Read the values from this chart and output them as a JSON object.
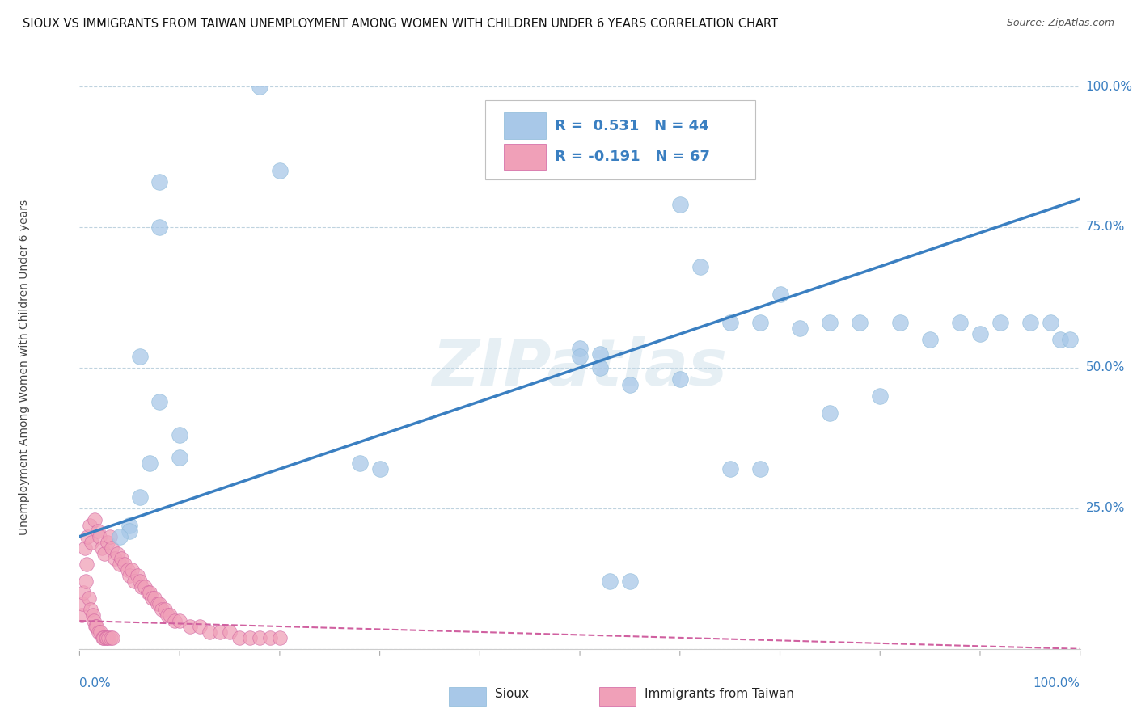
{
  "title": "SIOUX VS IMMIGRANTS FROM TAIWAN UNEMPLOYMENT AMONG WOMEN WITH CHILDREN UNDER 6 YEARS CORRELATION CHART",
  "source": "Source: ZipAtlas.com",
  "ylabel": "Unemployment Among Women with Children Under 6 years",
  "watermark": "ZIPatlas",
  "sioux_R": "0.531",
  "sioux_N": "44",
  "taiwan_R": "-0.191",
  "taiwan_N": "67",
  "sioux_color": "#a8c8e8",
  "taiwan_color": "#f0a0b8",
  "sioux_line_color": "#3a7fc1",
  "taiwan_line_color": "#d060a0",
  "background_color": "#ffffff",
  "grid_color": "#b0c8d8",
  "sioux_points": [
    [
      0.18,
      1.0
    ],
    [
      0.2,
      0.85
    ],
    [
      0.08,
      0.83
    ],
    [
      0.08,
      0.75
    ],
    [
      0.06,
      0.52
    ],
    [
      0.08,
      0.44
    ],
    [
      0.1,
      0.38
    ],
    [
      0.1,
      0.34
    ],
    [
      0.07,
      0.33
    ],
    [
      0.06,
      0.27
    ],
    [
      0.05,
      0.22
    ],
    [
      0.05,
      0.21
    ],
    [
      0.04,
      0.2
    ],
    [
      0.28,
      0.33
    ],
    [
      0.3,
      0.32
    ],
    [
      0.5,
      0.535
    ],
    [
      0.52,
      0.525
    ],
    [
      0.52,
      0.5
    ],
    [
      0.55,
      0.47
    ],
    [
      0.53,
      0.12
    ],
    [
      0.55,
      0.12
    ],
    [
      0.6,
      0.79
    ],
    [
      0.62,
      0.68
    ],
    [
      0.65,
      0.58
    ],
    [
      0.68,
      0.58
    ],
    [
      0.7,
      0.63
    ],
    [
      0.72,
      0.57
    ],
    [
      0.75,
      0.58
    ],
    [
      0.78,
      0.58
    ],
    [
      0.82,
      0.58
    ],
    [
      0.85,
      0.55
    ],
    [
      0.88,
      0.58
    ],
    [
      0.9,
      0.56
    ],
    [
      0.92,
      0.58
    ],
    [
      0.95,
      0.58
    ],
    [
      0.97,
      0.58
    ],
    [
      0.98,
      0.55
    ],
    [
      0.99,
      0.55
    ],
    [
      0.5,
      0.52
    ],
    [
      0.75,
      0.42
    ],
    [
      0.6,
      0.48
    ],
    [
      0.65,
      0.32
    ],
    [
      0.68,
      0.32
    ],
    [
      0.8,
      0.45
    ]
  ],
  "taiwan_points": [
    [
      0.005,
      0.18
    ],
    [
      0.008,
      0.2
    ],
    [
      0.01,
      0.22
    ],
    [
      0.012,
      0.19
    ],
    [
      0.015,
      0.23
    ],
    [
      0.018,
      0.21
    ],
    [
      0.02,
      0.2
    ],
    [
      0.022,
      0.18
    ],
    [
      0.025,
      0.17
    ],
    [
      0.028,
      0.19
    ],
    [
      0.03,
      0.2
    ],
    [
      0.032,
      0.18
    ],
    [
      0.035,
      0.16
    ],
    [
      0.038,
      0.17
    ],
    [
      0.04,
      0.15
    ],
    [
      0.042,
      0.16
    ],
    [
      0.045,
      0.15
    ],
    [
      0.048,
      0.14
    ],
    [
      0.05,
      0.13
    ],
    [
      0.052,
      0.14
    ],
    [
      0.055,
      0.12
    ],
    [
      0.058,
      0.13
    ],
    [
      0.06,
      0.12
    ],
    [
      0.062,
      0.11
    ],
    [
      0.065,
      0.11
    ],
    [
      0.068,
      0.1
    ],
    [
      0.07,
      0.1
    ],
    [
      0.072,
      0.09
    ],
    [
      0.075,
      0.09
    ],
    [
      0.078,
      0.08
    ],
    [
      0.08,
      0.08
    ],
    [
      0.082,
      0.07
    ],
    [
      0.085,
      0.07
    ],
    [
      0.088,
      0.06
    ],
    [
      0.09,
      0.06
    ],
    [
      0.095,
      0.05
    ],
    [
      0.1,
      0.05
    ],
    [
      0.11,
      0.04
    ],
    [
      0.12,
      0.04
    ],
    [
      0.13,
      0.03
    ],
    [
      0.14,
      0.03
    ],
    [
      0.15,
      0.03
    ],
    [
      0.16,
      0.02
    ],
    [
      0.17,
      0.02
    ],
    [
      0.18,
      0.02
    ],
    [
      0.19,
      0.02
    ],
    [
      0.2,
      0.02
    ],
    [
      0.002,
      0.06
    ],
    [
      0.003,
      0.08
    ],
    [
      0.004,
      0.1
    ],
    [
      0.006,
      0.12
    ],
    [
      0.007,
      0.15
    ],
    [
      0.009,
      0.09
    ],
    [
      0.011,
      0.07
    ],
    [
      0.013,
      0.06
    ],
    [
      0.014,
      0.05
    ],
    [
      0.016,
      0.04
    ],
    [
      0.017,
      0.04
    ],
    [
      0.019,
      0.03
    ],
    [
      0.021,
      0.03
    ],
    [
      0.023,
      0.02
    ],
    [
      0.024,
      0.02
    ],
    [
      0.026,
      0.02
    ],
    [
      0.027,
      0.02
    ],
    [
      0.029,
      0.02
    ],
    [
      0.031,
      0.02
    ],
    [
      0.033,
      0.02
    ]
  ],
  "xlim": [
    0,
    1.0
  ],
  "ylim": [
    0,
    1.0
  ],
  "ytick_vals": [
    0.0,
    0.25,
    0.5,
    0.75,
    1.0
  ],
  "ytick_labels": [
    "",
    "25.0%",
    "50.0%",
    "75.0%",
    "100.0%"
  ],
  "sioux_line_intercept": 0.2,
  "sioux_line_slope": 0.6,
  "taiwan_line_intercept": 0.05,
  "taiwan_line_slope": -0.05
}
